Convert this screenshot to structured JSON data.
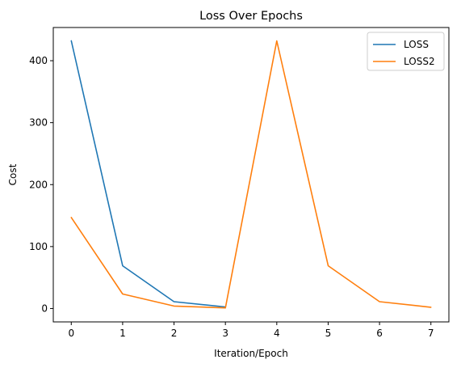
{
  "chart_data": {
    "type": "line",
    "title": "Loss Over Epochs",
    "xlabel": "Iteration/Epoch",
    "ylabel": "Cost",
    "xlim": [
      -0.35,
      7.35
    ],
    "ylim": [
      -21.6,
      453.6
    ],
    "x_ticks": [
      0,
      1,
      2,
      3,
      4,
      5,
      6,
      7
    ],
    "y_ticks": [
      0,
      100,
      200,
      300,
      400
    ],
    "grid": false,
    "legend_position": "top-right",
    "series": [
      {
        "name": "LOSS",
        "color": "#1f77b4",
        "x": [
          0,
          1,
          2,
          3
        ],
        "y": [
          432,
          69,
          11,
          2.5
        ]
      },
      {
        "name": "LOSS2",
        "color": "#ff7f0e",
        "x": [
          0,
          1,
          2,
          3,
          4,
          5,
          6,
          7
        ],
        "y": [
          147,
          23.5,
          4,
          1,
          432,
          69,
          11,
          2
        ]
      }
    ]
  }
}
